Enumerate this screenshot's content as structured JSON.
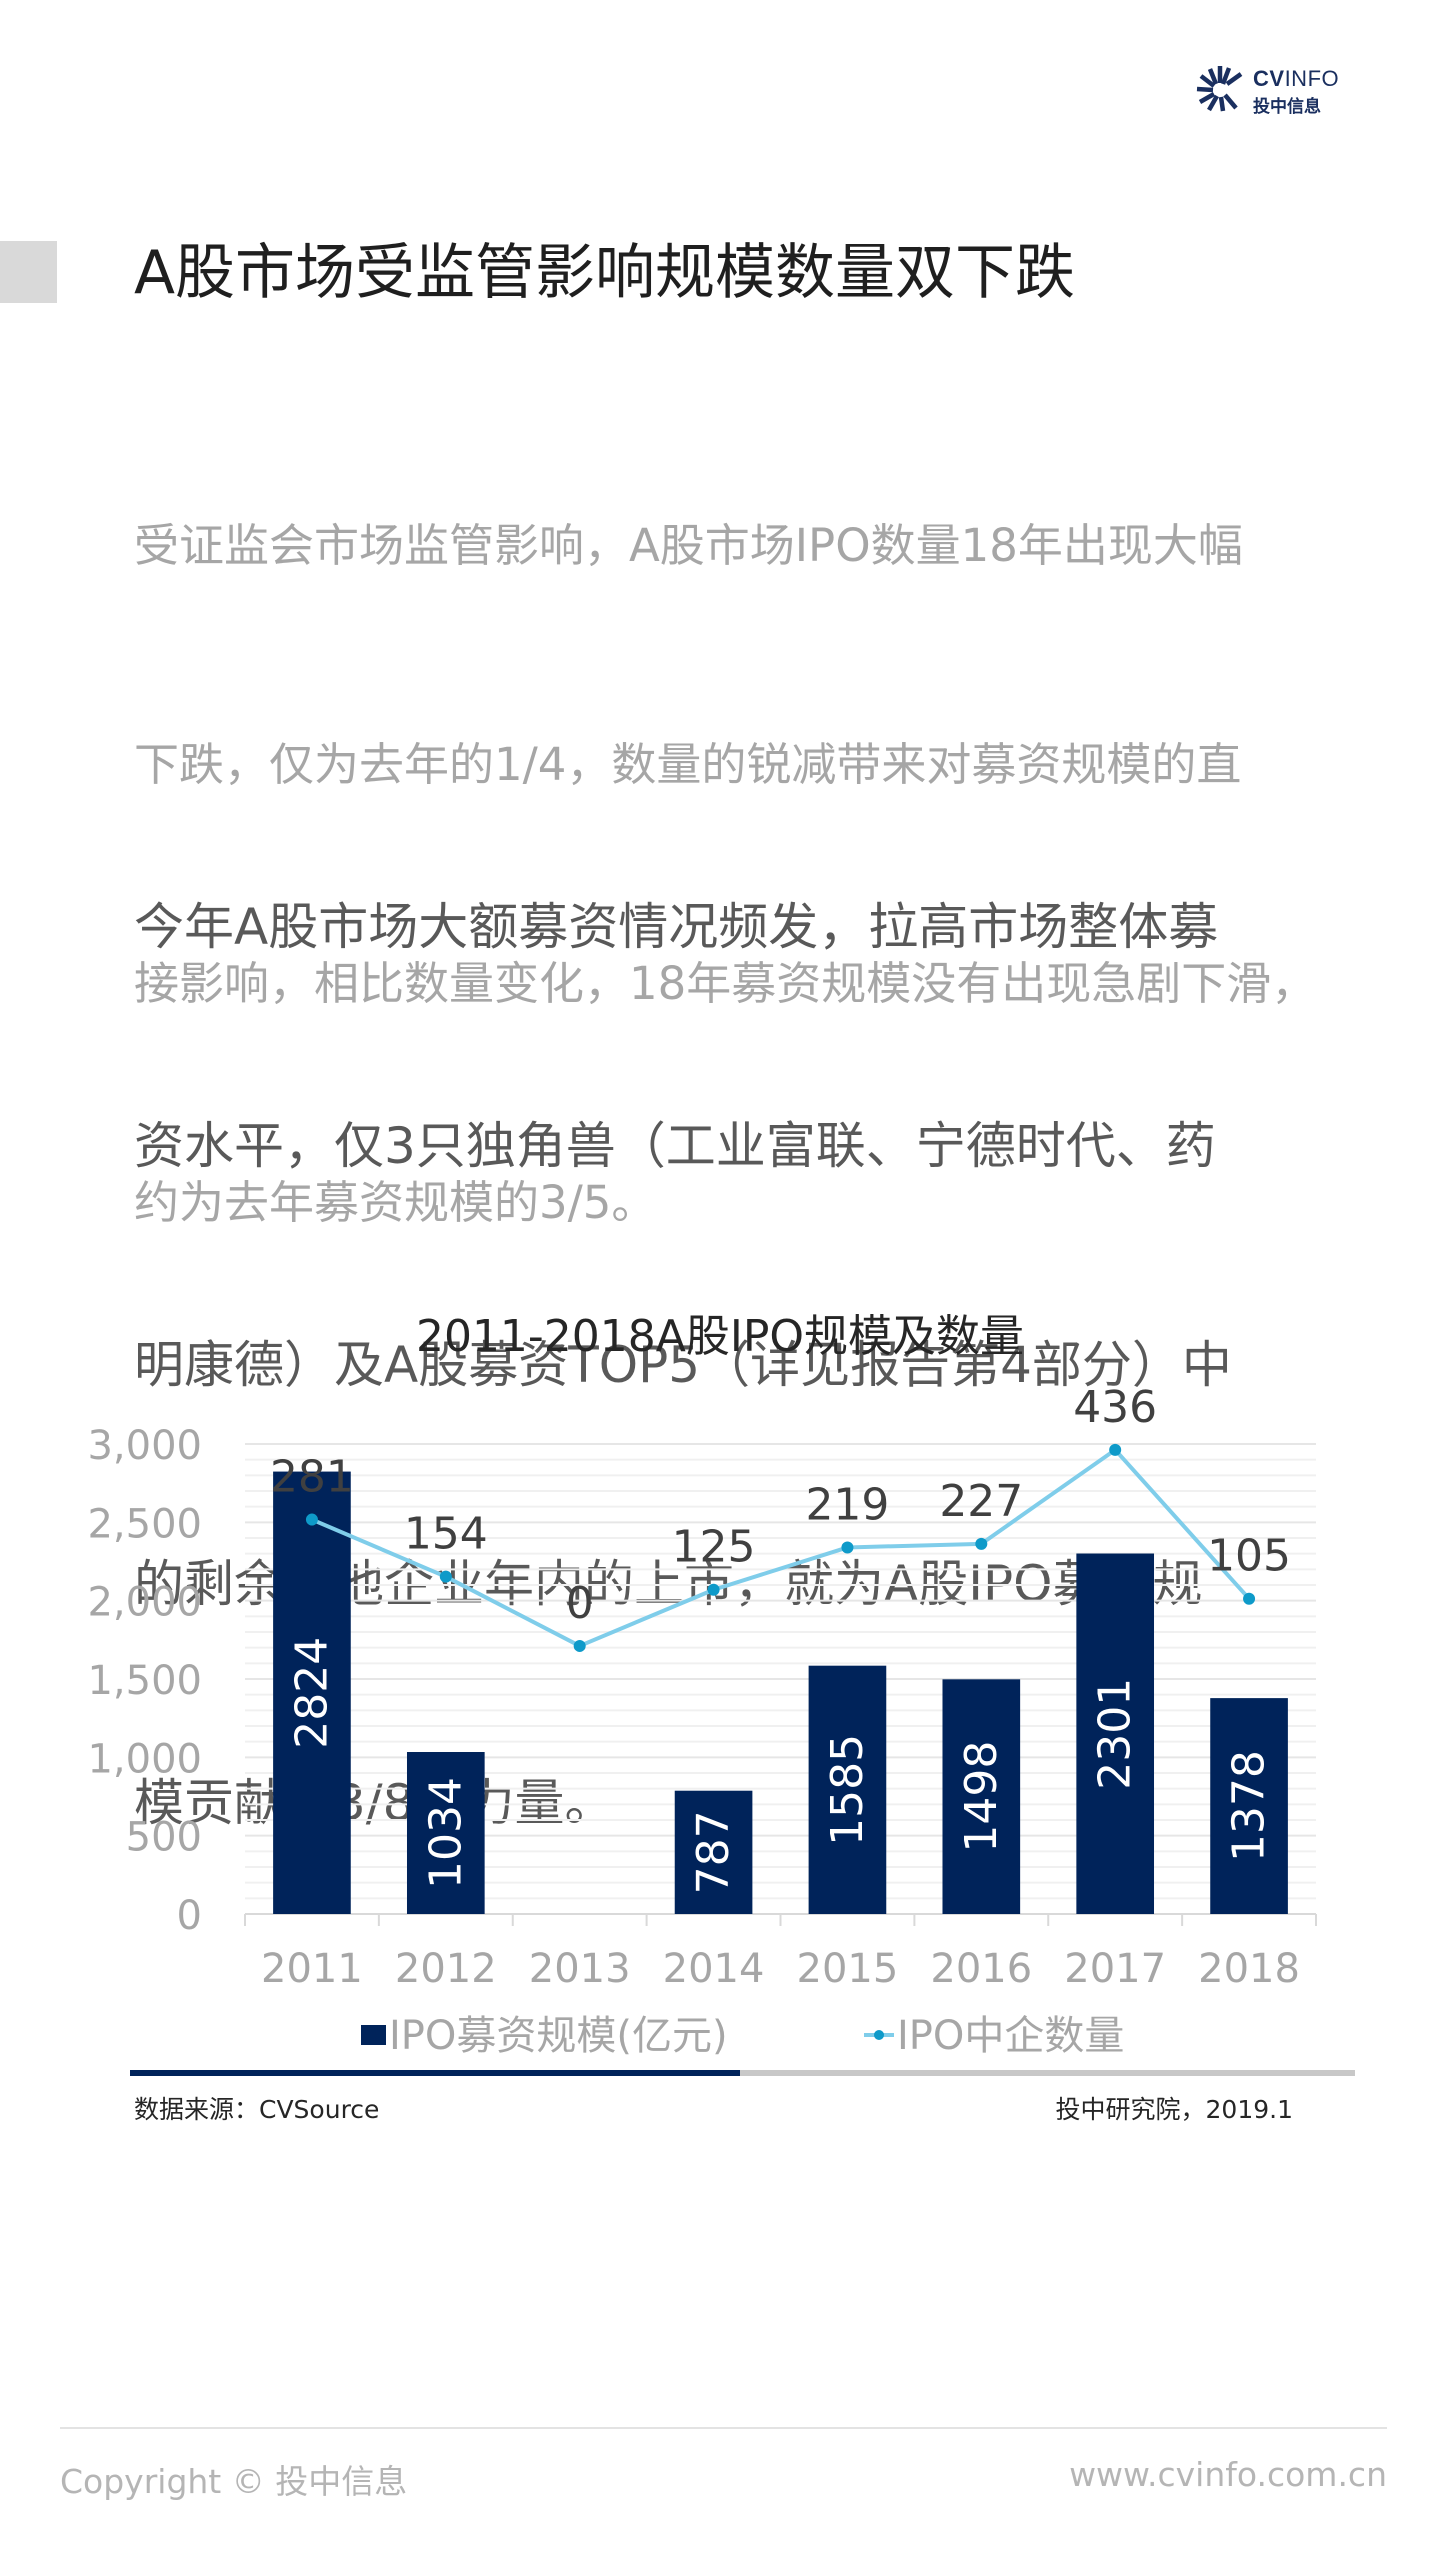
{
  "header": {
    "logo_en_bold": "CV",
    "logo_en_light": "INFO",
    "logo_cn": "投中信息",
    "brand_color": "#1a2f5f"
  },
  "title": "A股市场受监管影响规模数量双下跌",
  "paragraph1": {
    "lines": [
      "受证监会市场监管影响，A股市场IPO数量18年出现大幅",
      "下跌，仅为去年的1/4，数量的锐减带来对募资规模的直",
      "接影响，相比数量变化，18年募资规模没有出现急剧下滑，",
      "约为去年募资规模的3/5。"
    ]
  },
  "paragraph2": {
    "lines": [
      "今年A股市场大额募资情况频发，拉高市场整体募",
      "资水平，仅3只独角兽（工业富联、宁德时代、药",
      "明康德）及A股募资TOP5（详见报告第4部分）中",
      "的剩余其他企业年内的上市，就为A股IPO募资规",
      "模贡献了3/8的力量。"
    ]
  },
  "chart_data": {
    "type": "bar+line",
    "title": "2011-2018A股IPO规模及数量",
    "categories": [
      "2011",
      "2012",
      "2013",
      "2014",
      "2015",
      "2016",
      "2017",
      "2018"
    ],
    "series": [
      {
        "name": "IPO募资规模(亿元)",
        "type": "bar",
        "axis": "primary",
        "color": "#00235a",
        "values": [
          2824,
          1034,
          0,
          787,
          1585,
          1498,
          2301,
          1378
        ]
      },
      {
        "name": "IPO中企数量",
        "type": "line",
        "axis": "secondary",
        "color": "#7fcdea",
        "marker_color": "#0e9ac9",
        "values": [
          281,
          154,
          0,
          125,
          219,
          227,
          436,
          105
        ]
      }
    ],
    "xlabel": "",
    "ylabel": "",
    "ylim": [
      0,
      3000
    ],
    "yticks": [
      0,
      500,
      1000,
      1500,
      2000,
      2500,
      3000
    ],
    "ytick_labels": [
      "0",
      "500",
      "1,000",
      "1,500",
      "2,000",
      "2,500",
      "3,000"
    ],
    "y2lim": [
      -596,
      449
    ],
    "y2_visible": false,
    "grid": true,
    "grid_step": 100,
    "legend_position": "bottom"
  },
  "source": {
    "left": "数据来源：CVSource",
    "right": "投中研究院，2019.1"
  },
  "footer": {
    "copyright": "Copyright © 投中信息",
    "website": "www.cvinfo.com.cn"
  }
}
